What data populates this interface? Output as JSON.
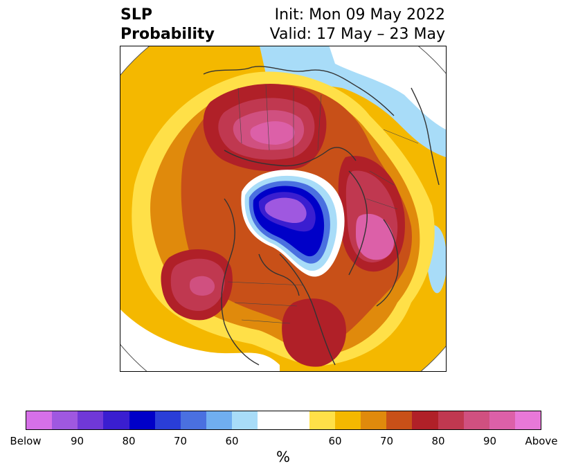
{
  "title": {
    "left_line1": "SLP",
    "left_line2": "Probability",
    "right_line1": "Init: Mon 09 May 2022",
    "right_line2": "Valid: 17 May – 23 May"
  },
  "colorbar": {
    "colors": [
      "#d670e8",
      "#9f58e0",
      "#7038d8",
      "#3a1ed0",
      "#0000c8",
      "#2a3ed8",
      "#4a70e0",
      "#70aef0",
      "#a8dcf8",
      "#ffffff",
      "#ffffff",
      "#ffe048",
      "#f4b800",
      "#e08a0c",
      "#c85018",
      "#b02028",
      "#c03850",
      "#d05080",
      "#dc60a8",
      "#e878d8"
    ],
    "tick_labels": [
      "Below",
      "90",
      "80",
      "70",
      "60",
      "",
      "60",
      "70",
      "80",
      "90",
      "Above"
    ],
    "unit": "%"
  },
  "map": {
    "projection": "north-polar-stereographic",
    "variable": "Sea Level Pressure probability",
    "features": [
      {
        "name": "below-normal-polar-center",
        "level": "90+ below"
      },
      {
        "name": "above-normal-siberia",
        "level": "90+ above"
      },
      {
        "name": "above-normal-north-pacific",
        "level": "90 above"
      },
      {
        "name": "above-normal-north-atlantic",
        "level": "90 above"
      },
      {
        "name": "above-normal-northeast-canada",
        "level": "80 above"
      }
    ]
  }
}
